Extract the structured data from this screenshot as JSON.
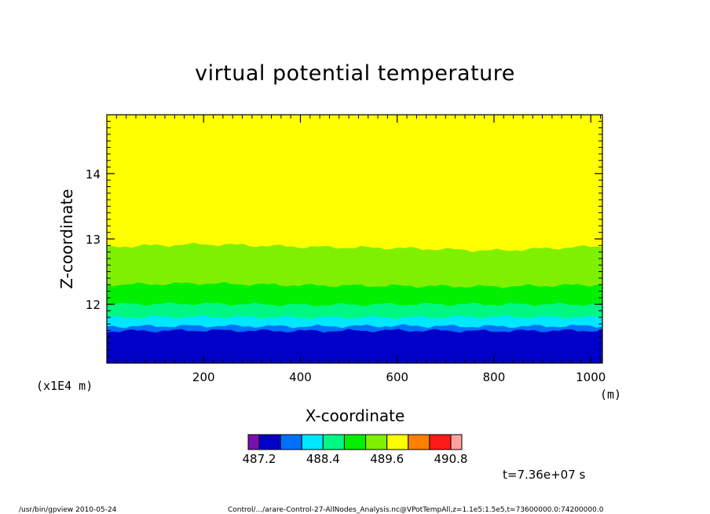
{
  "chart_data": {
    "type": "heatmap",
    "subtype": "filled-contour",
    "title": "virtual potential temperature",
    "xlabel": "X-coordinate",
    "ylabel": "Z-coordinate",
    "x_unit": "(m)",
    "y_scale_label": "(x1E4 m)",
    "xlim": [
      0,
      1024
    ],
    "ylim": [
      11.1,
      14.9
    ],
    "x_ticks": [
      200,
      400,
      600,
      800,
      1000
    ],
    "x_tick_labels": [
      "200",
      "400",
      "600",
      "800",
      "1000"
    ],
    "y_ticks": [
      12,
      13,
      14
    ],
    "y_tick_labels": [
      "12",
      "13",
      "14"
    ],
    "levels": [
      487.2,
      487.6,
      488.0,
      488.4,
      488.8,
      489.2,
      489.6,
      490.0,
      490.4,
      490.8
    ],
    "colorbar_labels": [
      "487.2",
      "488.4",
      "489.6",
      "490.8"
    ],
    "colorbar_colors": [
      "#7a0fb0",
      "#0000c8",
      "#0070ff",
      "#00e8ff",
      "#00f882",
      "#00f000",
      "#7ef000",
      "#ffff00",
      "#ff8000",
      "#ff1a1a",
      "#ffa0a0"
    ],
    "bands": [
      {
        "color": "#0000c8",
        "z_top": [
          11.59,
          11.6,
          11.59,
          11.6,
          11.59,
          11.6
        ]
      },
      {
        "color": "#0070ff",
        "z_top": [
          11.66,
          11.67,
          11.66,
          11.67,
          11.66,
          11.67
        ]
      },
      {
        "color": "#00e8ff",
        "z_top": [
          11.8,
          11.81,
          11.8,
          11.8,
          11.81,
          11.8
        ]
      },
      {
        "color": "#00f882",
        "z_top": [
          12.0,
          12.01,
          11.99,
          12.0,
          12.0,
          12.0
        ]
      },
      {
        "color": "#00f000",
        "z_top": [
          12.3,
          12.32,
          12.29,
          12.28,
          12.27,
          12.3
        ]
      },
      {
        "color": "#7ef000",
        "z_top": [
          12.88,
          12.92,
          12.88,
          12.86,
          12.82,
          12.89
        ]
      },
      {
        "color": "#ffff00",
        "z_top": [
          14.9,
          14.9,
          14.9,
          14.9,
          14.9,
          14.9
        ]
      }
    ],
    "band_x": [
      0,
      200,
      400,
      600,
      800,
      1024
    ],
    "time_label": "t=7.36e+07 s"
  },
  "footer": {
    "left": "/usr/bin/gpview  2010-05-24",
    "right": "Control/.../arare-Control-27-AllNodes_Analysis.nc@VPotTempAll,z=1.1e5:1.5e5,t=73600000.0:74200000.0"
  }
}
